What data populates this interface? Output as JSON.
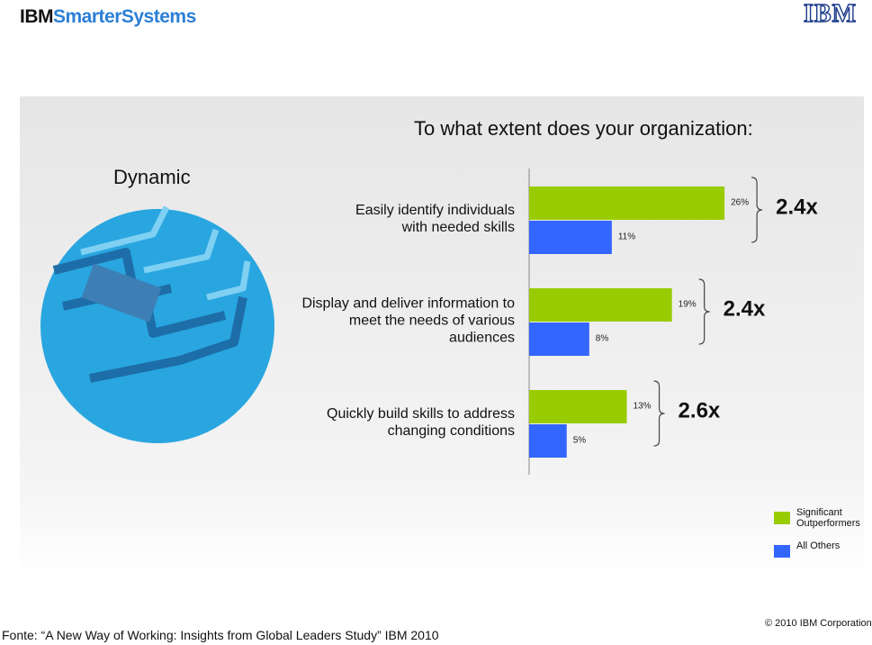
{
  "header": {
    "brand_bold": "IBM",
    "brand": "SmarterSystems",
    "logo": "IBM"
  },
  "chart_data": {
    "type": "bar",
    "orientation": "horizontal",
    "title": "To what extent does your organization:",
    "subtitle": "Dynamic",
    "categories": [
      "Easily identify individuals with needed skills",
      "Display and deliver information to meet the needs of various audiences",
      "Quickly build skills to address changing conditions"
    ],
    "series": [
      {
        "name": "Significant Outperformers",
        "color": "#99cc00",
        "values": [
          26,
          19,
          13
        ],
        "value_labels": [
          "26%",
          "19%",
          "13%"
        ]
      },
      {
        "name": "All Others",
        "color": "#3366ff",
        "values": [
          11,
          8,
          5
        ],
        "value_labels": [
          "11%",
          "8%",
          "5%"
        ]
      }
    ],
    "annotations": [
      "2.4x",
      "2.4x",
      "2.6x"
    ],
    "legend": "lower right"
  },
  "footer": {
    "source": "Fonte: “A New Way of Working: Insights from Global Leaders Study” IBM 2010",
    "copyright": "© 2010 IBM Corporation"
  }
}
